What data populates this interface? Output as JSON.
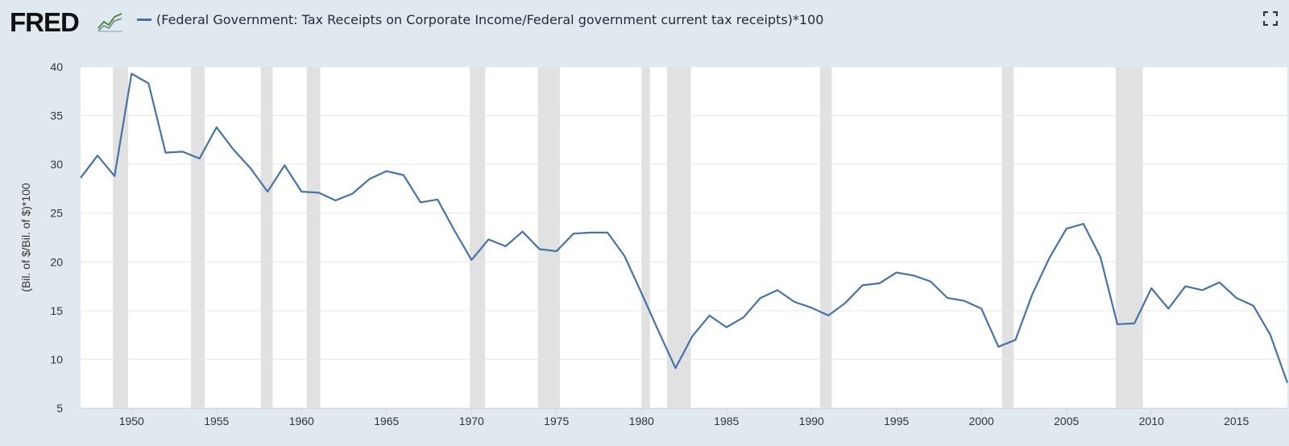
{
  "header": {
    "logo_text": "FRED",
    "legend_label": "(Federal Government: Tax Receipts on Corporate Income/Federal government current tax receipts)*100"
  },
  "colors": {
    "line": "#4572a7",
    "recession": "#e1e1e1",
    "grid": "#e6e6e6",
    "background": "#e1e9f0",
    "plot": "#ffffff"
  },
  "icons": {
    "fullscreen": "fullscreen-icon",
    "logo": "fred-graph-icon"
  },
  "chart_data": {
    "type": "line",
    "title": "",
    "xlabel": "",
    "ylabel": "(Bil. of $/Bil. of $)*100",
    "xlim": [
      1947,
      2018
    ],
    "ylim": [
      5,
      40
    ],
    "yticks": [
      5,
      10,
      15,
      20,
      25,
      30,
      35,
      40
    ],
    "xticks": [
      1950,
      1955,
      1960,
      1965,
      1970,
      1975,
      1980,
      1985,
      1990,
      1995,
      2000,
      2005,
      2010,
      2015
    ],
    "grid": true,
    "recessions": [
      [
        1948.9,
        1949.8
      ],
      [
        1953.5,
        1954.3
      ],
      [
        1957.6,
        1958.3
      ],
      [
        1960.3,
        1961.1
      ],
      [
        1969.9,
        1970.8
      ],
      [
        1973.9,
        1975.2
      ],
      [
        1980.0,
        1980.5
      ],
      [
        1981.5,
        1982.9
      ],
      [
        1990.5,
        1991.2
      ],
      [
        2001.2,
        2001.9
      ],
      [
        2007.9,
        2009.5
      ]
    ],
    "series": [
      {
        "name": "(Federal Government: Tax Receipts on Corporate Income/Federal government current tax receipts)*100",
        "x": [
          1947,
          1948,
          1949,
          1950,
          1951,
          1952,
          1953,
          1954,
          1955,
          1956,
          1957,
          1958,
          1959,
          1960,
          1961,
          1962,
          1963,
          1964,
          1965,
          1966,
          1967,
          1968,
          1969,
          1970,
          1971,
          1972,
          1973,
          1974,
          1975,
          1976,
          1977,
          1978,
          1979,
          1980,
          1981,
          1982,
          1983,
          1984,
          1985,
          1986,
          1987,
          1988,
          1989,
          1990,
          1991,
          1992,
          1993,
          1994,
          1995,
          1996,
          1997,
          1998,
          1999,
          2000,
          2001,
          2002,
          2003,
          2004,
          2005,
          2006,
          2007,
          2008,
          2009,
          2010,
          2011,
          2012,
          2013,
          2014,
          2015,
          2016,
          2017,
          2018
        ],
        "values": [
          28.6,
          30.9,
          28.8,
          39.3,
          38.3,
          31.2,
          31.3,
          30.6,
          33.8,
          31.5,
          29.6,
          27.2,
          29.9,
          27.2,
          27.1,
          26.3,
          27.0,
          28.5,
          29.3,
          28.9,
          26.1,
          26.4,
          23.2,
          20.2,
          22.3,
          21.6,
          23.1,
          21.3,
          21.1,
          22.9,
          23.0,
          23.0,
          20.6,
          16.8,
          12.9,
          9.1,
          12.4,
          14.5,
          13.3,
          14.3,
          16.3,
          17.1,
          15.9,
          15.3,
          14.5,
          15.8,
          17.6,
          17.8,
          18.9,
          18.6,
          18.0,
          16.3,
          16.0,
          15.2,
          11.3,
          12.0,
          16.7,
          20.4,
          23.4,
          23.9,
          20.5,
          13.6,
          13.7,
          17.3,
          15.2,
          17.5,
          17.1,
          17.9,
          16.3,
          15.5,
          12.5,
          7.6
        ]
      }
    ]
  }
}
